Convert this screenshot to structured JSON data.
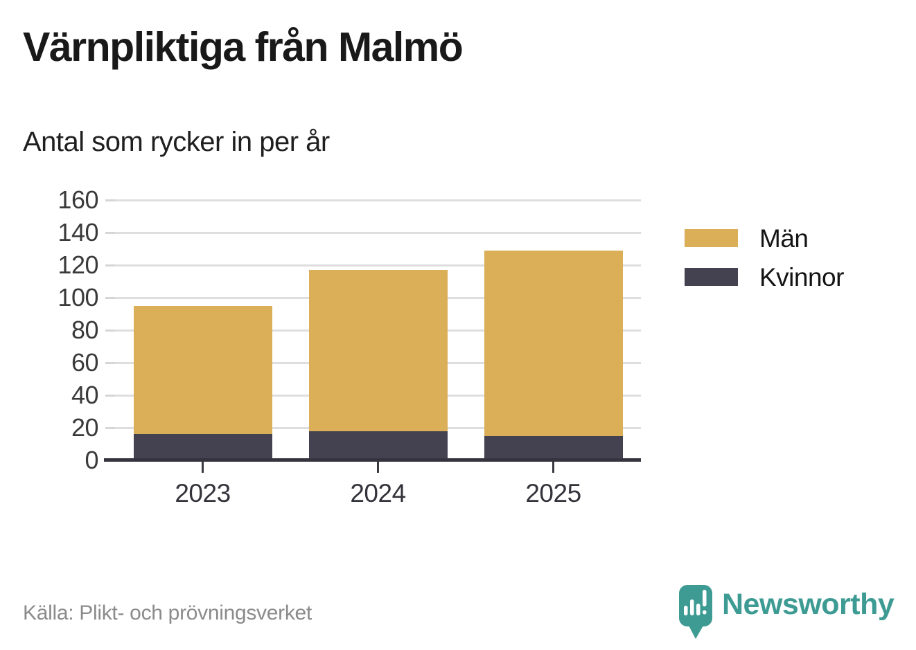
{
  "header": {
    "title": "Värnpliktiga från Malmö",
    "subtitle": "Antal som rycker in per år"
  },
  "chart_data": {
    "type": "bar",
    "stacked": true,
    "categories": [
      "2023",
      "2024",
      "2025"
    ],
    "series": [
      {
        "name": "Män",
        "color": "#dbae58",
        "values": [
          79,
          99,
          114
        ]
      },
      {
        "name": "Kvinnor",
        "color": "#444251",
        "values": [
          16,
          18,
          15
        ]
      }
    ],
    "stack_order_bottom_to_top": [
      "Kvinnor",
      "Män"
    ],
    "totals": [
      95,
      117,
      129
    ],
    "ylim": [
      0,
      160
    ],
    "yticks": [
      0,
      20,
      40,
      60,
      80,
      100,
      120,
      140,
      160
    ],
    "xlabel": "",
    "ylabel": "",
    "grid": "horizontal",
    "legend_position": "right"
  },
  "footer": {
    "source": "Källa: Plikt- och prövningsverket",
    "brand": "Newsworthy",
    "logo_icon": "newsworthy-speech-bubble-bar-chart-icon"
  },
  "colors": {
    "men_bar": "#dbae58",
    "women_bar": "#444251",
    "brand_teal": "#3d9b93",
    "gridline": "#dedede",
    "axis": "#35343e"
  }
}
